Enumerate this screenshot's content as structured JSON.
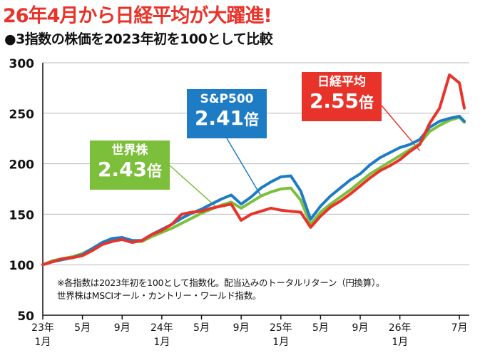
{
  "headline": "26年4月から日経平均が大躍進!",
  "subtitle": "●3指数の株価を2023年初を100として比較",
  "notes": [
    "※各指数は2023年初を100として指数化。配当込みのトータルリターン（円換算）。",
    "世界株はMSCIオール・カントリー・ワールド指数。"
  ],
  "callouts": {
    "nikkei": {
      "name": "日経平均",
      "value": "2.55",
      "unit": "倍",
      "color": "#e8332a"
    },
    "sp500": {
      "name": "S&P500",
      "value": "2.41",
      "unit": "倍",
      "color": "#1e7cc4"
    },
    "world": {
      "name": "世界株",
      "value": "2.43",
      "unit": "倍",
      "color": "#7bbf3a"
    }
  },
  "chart_data": {
    "type": "line",
    "ylim": [
      50,
      300
    ],
    "y_ticks": [
      50,
      100,
      150,
      200,
      250,
      300
    ],
    "x_ticks": [
      {
        "m": 0,
        "label": "23年",
        "sub": "1月"
      },
      {
        "m": 4,
        "label": "5月"
      },
      {
        "m": 8,
        "label": "9月"
      },
      {
        "m": 12,
        "label": "24年",
        "sub": "1月"
      },
      {
        "m": 16,
        "label": "5月"
      },
      {
        "m": 20,
        "label": "9月"
      },
      {
        "m": 24,
        "label": "25年",
        "sub": "1月"
      },
      {
        "m": 28,
        "label": "5月"
      },
      {
        "m": 32,
        "label": "9月"
      },
      {
        "m": 36,
        "label": "26年",
        "sub": "1月"
      },
      {
        "m": 42,
        "label": "7月"
      }
    ],
    "x": [
      0,
      1,
      2,
      3,
      4,
      5,
      6,
      7,
      8,
      9,
      10,
      11,
      12,
      13,
      14,
      15,
      16,
      17,
      18,
      19,
      20,
      21,
      22,
      23,
      24,
      25,
      26,
      27,
      28,
      29,
      30,
      31,
      32,
      33,
      34,
      35,
      36,
      37,
      38,
      39,
      40,
      41,
      42,
      42.5
    ],
    "series": [
      {
        "name": "世界株",
        "color": "#7bbf3a",
        "values": [
          100,
          104,
          106,
          108,
          111,
          116,
          121,
          124,
          125,
          123,
          123,
          128,
          132,
          136,
          141,
          146,
          151,
          155,
          159,
          162,
          156,
          162,
          168,
          172,
          175,
          176,
          164,
          140,
          152,
          160,
          167,
          174,
          182,
          190,
          196,
          202,
          208,
          214,
          220,
          232,
          238,
          243,
          246,
          241
        ]
      },
      {
        "name": "S&P500",
        "color": "#1e7cc4",
        "values": [
          100,
          103,
          105,
          107,
          110,
          116,
          122,
          126,
          127,
          124,
          124,
          130,
          135,
          140,
          146,
          151,
          155,
          160,
          165,
          169,
          160,
          167,
          176,
          182,
          187,
          188,
          173,
          145,
          158,
          168,
          176,
          184,
          190,
          199,
          206,
          211,
          216,
          219,
          224,
          236,
          242,
          245,
          247,
          242
        ]
      },
      {
        "name": "日経平均",
        "color": "#e8332a",
        "values": [
          100,
          103,
          106,
          107,
          109,
          114,
          120,
          123,
          125,
          122,
          124,
          130,
          134,
          140,
          150,
          152,
          153,
          156,
          158,
          160,
          144,
          150,
          153,
          156,
          154,
          153,
          152,
          137,
          148,
          157,
          163,
          170,
          178,
          186,
          193,
          198,
          204,
          212,
          219,
          240,
          255,
          288,
          280,
          255
        ]
      }
    ]
  }
}
